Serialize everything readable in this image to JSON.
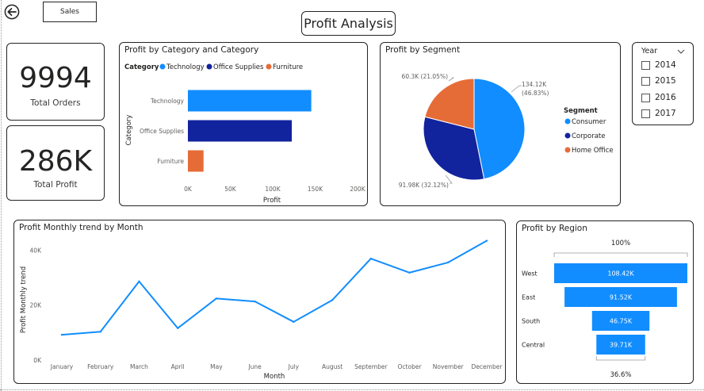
{
  "header": {
    "tab_label": "Sales",
    "page_title": "Profit Analysis"
  },
  "kpis": {
    "total_orders": {
      "value": "9994",
      "label": "Total Orders"
    },
    "total_profit": {
      "value": "286K",
      "label": "Total Profit"
    }
  },
  "colors": {
    "technology": "#118DFF",
    "office_supplies": "#12239E",
    "furniture": "#E66C37",
    "line": "#118DFF",
    "funnel": "#118DFF"
  },
  "chart_data": [
    {
      "id": "category",
      "type": "bar",
      "title": "Profit by Category and Category",
      "legend_title": "Category",
      "legend": [
        "Technology",
        "Office Supplies",
        "Furniture"
      ],
      "categories": [
        "Technology",
        "Office Supplies",
        "Furniture"
      ],
      "values": [
        145455,
        122490,
        18451
      ],
      "xlabel": "Profit",
      "ylabel": "Category",
      "xlim": [
        0,
        200000
      ],
      "xticks": [
        "0K",
        "50K",
        "100K",
        "150K",
        "200K"
      ],
      "grid": false
    },
    {
      "id": "segment",
      "type": "pie",
      "title": "Profit by Segment",
      "legend_title": "Segment",
      "slices": [
        {
          "name": "Consumer",
          "value": 134.12,
          "label": "134.12K",
          "pct": "(46.83%)"
        },
        {
          "name": "Corporate",
          "value": 91.98,
          "label": "91.98K (32.12%)"
        },
        {
          "name": "Home Office",
          "value": 60.3,
          "label": "60.3K (21.05%)"
        }
      ]
    },
    {
      "id": "monthly",
      "type": "line",
      "title": "Profit Monthly trend by Month",
      "xlabel": "Month",
      "ylabel": "Profit Monthly trend",
      "categories": [
        "January",
        "February",
        "March",
        "April",
        "May",
        "June",
        "July",
        "August",
        "September",
        "October",
        "November",
        "December"
      ],
      "values": [
        9200,
        10300,
        28600,
        11600,
        22400,
        21300,
        13900,
        21800,
        36900,
        31800,
        35500,
        43400
      ],
      "ylim": [
        0,
        45000
      ],
      "yticks": [
        "0K",
        "20K",
        "40K"
      ],
      "grid": false
    },
    {
      "id": "region",
      "type": "bar",
      "subtype": "funnel",
      "title": "Profit by Region",
      "categories": [
        "West",
        "East",
        "South",
        "Central"
      ],
      "values": [
        108.42,
        91.52,
        46.75,
        39.71
      ],
      "labels": [
        "108.42K",
        "91.52K",
        "46.75K",
        "39.71K"
      ],
      "top_label": "100%",
      "bottom_label": "36.6%"
    }
  ],
  "year_slicer": {
    "title": "Year",
    "options": [
      "2014",
      "2015",
      "2016",
      "2017"
    ]
  }
}
